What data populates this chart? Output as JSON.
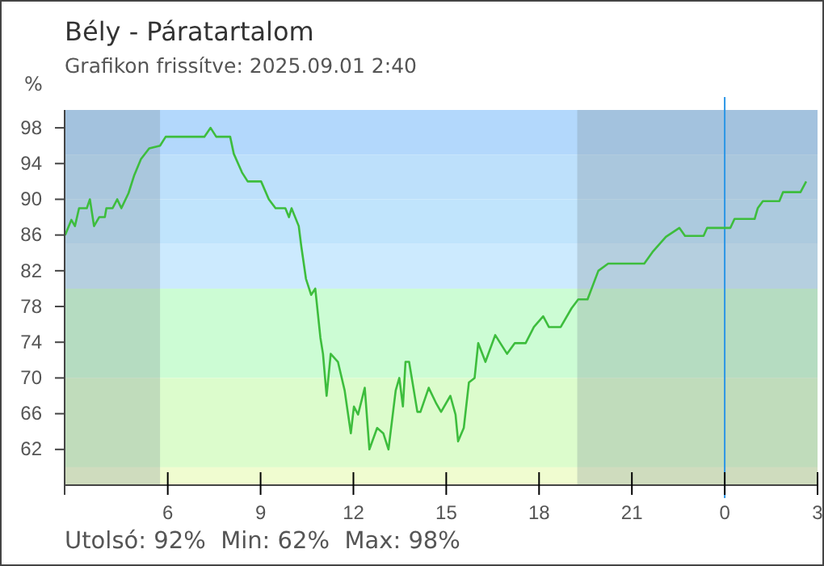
{
  "chart_data": {
    "type": "line",
    "title": "Bély - Páratartalom",
    "subtitle": "Grafikon frissítve: 2025.09.01 2:40",
    "ylabel": "%",
    "annotations": [
      "Utolsó: 92%  Min: 62%  Max: 98%"
    ],
    "x": [
      "2025-08-31T02:41",
      "2025-08-31T02:53",
      "2025-08-31T03:00",
      "2025-08-31T03:08",
      "2025-08-31T03:23",
      "2025-08-31T03:29",
      "2025-08-31T03:37",
      "2025-08-31T03:47",
      "2025-08-31T03:58",
      "2025-08-31T04:01",
      "2025-08-31T04:13",
      "2025-08-31T04:22",
      "2025-08-31T04:30",
      "2025-08-31T04:44",
      "2025-08-31T04:55",
      "2025-08-31T05:08",
      "2025-08-31T05:24",
      "2025-08-31T05:45",
      "2025-08-31T05:56",
      "2025-08-31T07:11",
      "2025-08-31T07:23",
      "2025-08-31T07:34",
      "2025-08-31T08:01",
      "2025-08-31T08:08",
      "2025-08-31T08:24",
      "2025-08-31T08:35",
      "2025-08-31T09:01",
      "2025-08-31T09:16",
      "2025-08-31T09:29",
      "2025-08-31T09:48",
      "2025-08-31T09:55",
      "2025-08-31T10:00",
      "2025-08-31T10:14",
      "2025-08-31T10:19",
      "2025-08-31T10:28",
      "2025-08-31T10:38",
      "2025-08-31T10:46",
      "2025-08-31T10:56",
      "2025-08-31T11:01",
      "2025-08-31T11:08",
      "2025-08-31T11:16",
      "2025-08-31T11:30",
      "2025-08-31T11:43",
      "2025-08-31T11:55",
      "2025-08-31T12:01",
      "2025-08-31T12:09",
      "2025-08-31T12:22",
      "2025-08-31T12:31",
      "2025-08-31T12:46",
      "2025-08-31T12:58",
      "2025-08-31T13:08",
      "2025-08-31T13:22",
      "2025-08-31T13:29",
      "2025-08-31T13:36",
      "2025-08-31T13:41",
      "2025-08-31T13:48",
      "2025-08-31T14:04",
      "2025-08-31T14:10",
      "2025-08-31T14:26",
      "2025-08-31T14:41",
      "2025-08-31T14:50",
      "2025-08-31T15:08",
      "2025-08-31T15:18",
      "2025-08-31T15:23",
      "2025-08-31T15:34",
      "2025-08-31T15:44",
      "2025-08-31T15:55",
      "2025-08-31T16:02",
      "2025-08-31T16:16",
      "2025-08-31T16:35",
      "2025-08-31T16:58",
      "2025-08-31T17:13",
      "2025-08-31T17:34",
      "2025-08-31T17:50",
      "2025-08-31T18:08",
      "2025-08-31T18:19",
      "2025-08-31T18:42",
      "2025-08-31T19:03",
      "2025-08-31T19:16",
      "2025-08-31T19:34",
      "2025-08-31T19:55",
      "2025-08-31T20:14",
      "2025-08-31T21:24",
      "2025-08-31T21:40",
      "2025-08-31T22:06",
      "2025-08-31T22:32",
      "2025-08-31T22:43",
      "2025-08-31T23:19",
      "2025-08-31T23:26",
      "2025-09-01T00:11",
      "2025-09-01T00:19",
      "2025-09-01T00:58",
      "2025-09-01T01:04",
      "2025-09-01T01:14",
      "2025-09-01T01:46",
      "2025-09-01T01:53",
      "2025-09-01T02:27",
      "2025-09-01T02:38"
    ],
    "series": [
      {
        "color": "#3dbd3d",
        "values": [
          86,
          87.7,
          87,
          89,
          89,
          90,
          87,
          88,
          88,
          89,
          89,
          90,
          89,
          90.7,
          92.7,
          94.5,
          95.7,
          96,
          97,
          97,
          98,
          97,
          97,
          95.1,
          93,
          92,
          92,
          90,
          89,
          89,
          88,
          89,
          87,
          84.7,
          81.1,
          79.3,
          80,
          74.5,
          72.7,
          68,
          72.7,
          71.8,
          68.6,
          63.8,
          66.8,
          65.9,
          68.9,
          62,
          64.4,
          63.8,
          62,
          68.6,
          70,
          66.8,
          71.8,
          71.8,
          66.2,
          66.2,
          68.9,
          67.1,
          66.2,
          68,
          65.9,
          62.9,
          64.4,
          69.5,
          70,
          73.9,
          71.8,
          74.8,
          72.7,
          73.9,
          73.9,
          75.7,
          76.9,
          75.7,
          75.7,
          77.8,
          78.8,
          78.8,
          82,
          82.8,
          82.8,
          84.1,
          85.8,
          86.8,
          85.9,
          85.9,
          86.8,
          86.8,
          87.8,
          87.8,
          89,
          89.8,
          89.8,
          90.8,
          90.8,
          92
        ]
      }
    ],
    "xlim": [
      "2025-08-31T02:40",
      "2025-09-01T03:00"
    ],
    "xticks": [
      {
        "value": "2025-08-31T06:00",
        "label": "6"
      },
      {
        "value": "2025-08-31T09:00",
        "label": "9"
      },
      {
        "value": "2025-08-31T12:00",
        "label": "12"
      },
      {
        "value": "2025-08-31T15:00",
        "label": "15"
      },
      {
        "value": "2025-08-31T18:00",
        "label": "18"
      },
      {
        "value": "2025-08-31T21:00",
        "label": "21"
      },
      {
        "value": "2025-09-01T00:00",
        "label": "0"
      },
      {
        "value": "2025-09-01T03:00",
        "label": "3"
      }
    ],
    "ylim": [
      58,
      100
    ],
    "yticks": [
      62,
      66,
      70,
      74,
      78,
      82,
      86,
      90,
      94,
      98
    ],
    "grid": false,
    "marker": "none",
    "line_style": "solid",
    "bands": [
      {
        "axis": "y",
        "from": 95,
        "to": 100,
        "color": "#b3d8fc"
      },
      {
        "axis": "y",
        "from": 90,
        "to": 95,
        "color": "#bde0fb"
      },
      {
        "axis": "y",
        "from": 85,
        "to": 90,
        "color": "#c0e4fc"
      },
      {
        "axis": "y",
        "from": 80,
        "to": 85,
        "color": "#cceafe"
      },
      {
        "axis": "y",
        "from": 70,
        "to": 80,
        "color": "#ccfcd4"
      },
      {
        "axis": "y",
        "from": 60,
        "to": 70,
        "color": "#dcfccc"
      },
      {
        "axis": "y",
        "from": 58,
        "to": 60,
        "color": "#f0fcd0"
      },
      {
        "axis": "x",
        "from": "2025-08-31T02:40",
        "to": "2025-08-31T05:45",
        "color": "#7a8a90"
      },
      {
        "axis": "x",
        "from": "2025-08-31T19:14",
        "to": "2025-09-01T03:00",
        "color": "#7a8a90"
      }
    ],
    "ref_lines": [
      {
        "axis": "x",
        "value": "2025-09-01T00:00",
        "color": "#2a96e6"
      }
    ]
  }
}
